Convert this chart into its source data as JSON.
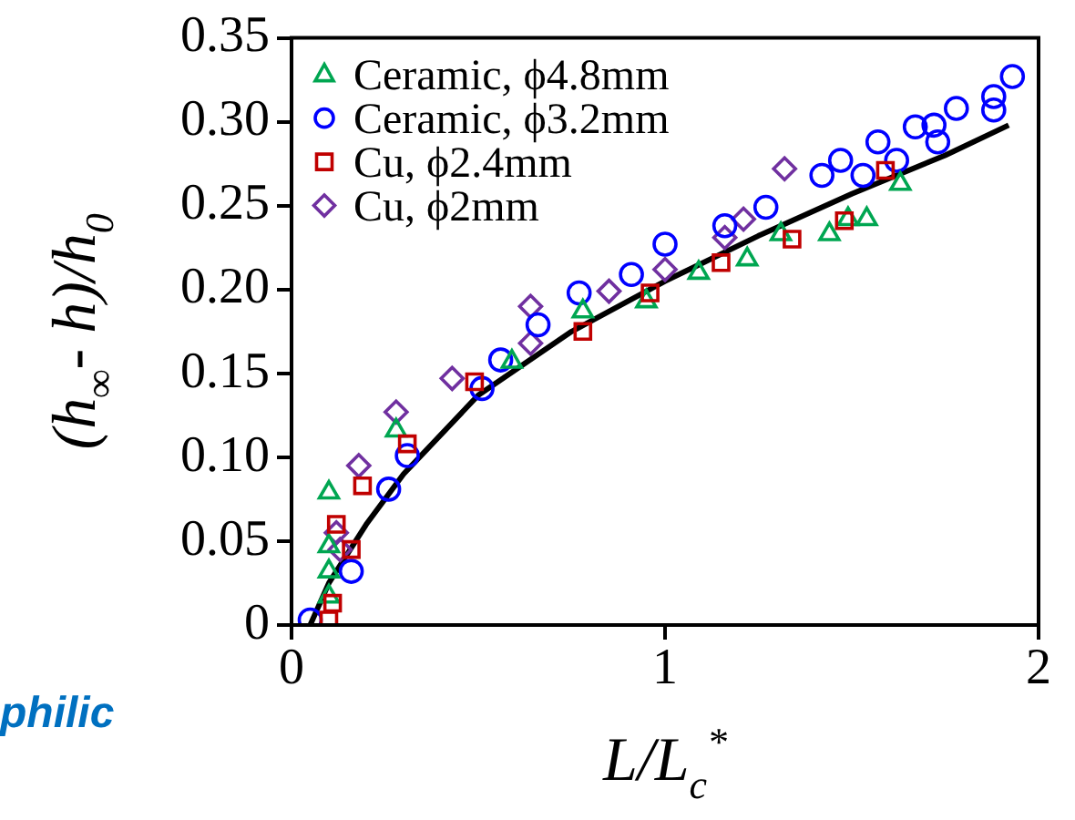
{
  "chart_data": {
    "type": "scatter",
    "xlabel": "L/L$_{c}$$^{*}$",
    "ylabel": "(h$_{∞}$- h)/h$_{0}$",
    "xlim": [
      0,
      2
    ],
    "xticks": [
      0,
      1,
      2
    ],
    "ylim": [
      0,
      0.35
    ],
    "yticks": [
      0,
      0.05,
      {
        "value": 0.1,
        "label": "0.10"
      },
      0.15,
      {
        "value": 0.2,
        "label": "0.20"
      },
      0.25,
      {
        "value": 0.3,
        "label": "0.30"
      },
      0.35
    ],
    "grid": false,
    "legend": "top left",
    "annotations": [
      "philic"
    ],
    "series": [
      {
        "name": "Ceramic, ϕ4.8mm",
        "color": "#00a651",
        "marker": "triangle",
        "x": [
          0.1,
          0.1,
          0.1,
          0.1,
          0.28,
          0.59,
          0.78,
          0.95,
          1.09,
          1.22,
          1.31,
          1.44,
          1.49,
          1.54,
          1.63
        ],
        "values": [
          0.079,
          0.047,
          0.032,
          0.017,
          0.116,
          0.157,
          0.187,
          0.193,
          0.21,
          0.218,
          0.233,
          0.233,
          0.242,
          0.242,
          0.263
        ]
      },
      {
        "name": "Ceramic, ϕ3.2mm",
        "color": "#0000ff",
        "marker": "circle",
        "x": [
          0.05,
          0.16,
          0.26,
          0.31,
          0.51,
          0.56,
          0.66,
          0.77,
          0.91,
          1.0,
          1.16,
          1.27,
          1.42,
          1.47,
          1.53,
          1.57,
          1.62,
          1.67,
          1.72,
          1.73,
          1.78,
          1.88,
          1.88,
          1.93
        ],
        "values": [
          0.003,
          0.032,
          0.081,
          0.101,
          0.141,
          0.158,
          0.179,
          0.198,
          0.209,
          0.227,
          0.238,
          0.249,
          0.268,
          0.277,
          0.268,
          0.288,
          0.277,
          0.297,
          0.298,
          0.288,
          0.308,
          0.315,
          0.307,
          0.327
        ]
      },
      {
        "name": "Cu, ϕ2.4mm",
        "color": "#c00000",
        "marker": "square",
        "x": [
          0.1,
          0.11,
          0.12,
          0.16,
          0.19,
          0.31,
          0.49,
          0.78,
          0.96,
          1.15,
          1.34,
          1.48,
          1.59
        ],
        "values": [
          0.003,
          0.013,
          0.06,
          0.045,
          0.083,
          0.108,
          0.145,
          0.175,
          0.198,
          0.216,
          0.23,
          0.241,
          0.271
        ]
      },
      {
        "name": "Cu, ϕ2mm",
        "color": "#7030a0",
        "marker": "diamond",
        "x": [
          0.12,
          0.13,
          0.18,
          0.28,
          0.43,
          0.64,
          0.64,
          0.85,
          1.0,
          1.16,
          1.21,
          1.32
        ],
        "values": [
          0.055,
          0.045,
          0.095,
          0.127,
          0.147,
          0.19,
          0.168,
          0.199,
          0.212,
          0.231,
          0.242,
          0.272
        ]
      },
      {
        "type": "line",
        "color": "#000000",
        "marker": "none",
        "x": [
          0.05,
          0.1,
          0.2,
          0.3,
          0.5,
          0.75,
          1.0,
          1.25,
          1.5,
          1.75,
          1.92
        ],
        "values": [
          0,
          0.025,
          0.06,
          0.09,
          0.137,
          0.175,
          0.205,
          0.232,
          0.257,
          0.28,
          0.298
        ]
      }
    ]
  }
}
